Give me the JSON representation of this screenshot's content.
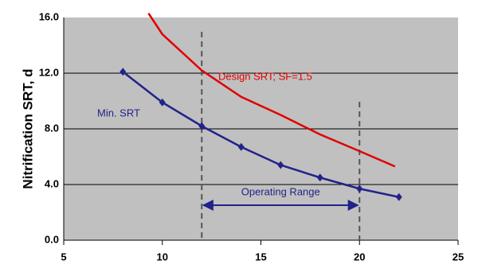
{
  "chart_data": {
    "type": "line",
    "y_label": "Nitrification SRT, d",
    "xlim": [
      5,
      25
    ],
    "xticks": [
      5,
      10,
      15,
      20,
      25
    ],
    "ylim": [
      0,
      16
    ],
    "yticks": [
      {
        "value": 0,
        "label": "0.0"
      },
      {
        "value": 4,
        "label": "4.0"
      },
      {
        "value": 8,
        "label": "8.0"
      },
      {
        "value": 12,
        "label": "12.0"
      },
      {
        "value": 16,
        "label": "16.0"
      }
    ],
    "grid": true,
    "series": [
      {
        "name": "Min. SRT",
        "color": "#22228b",
        "markers": true,
        "x": [
          8,
          10,
          12,
          14,
          16,
          18,
          20,
          22
        ],
        "values": [
          12.1,
          9.9,
          8.2,
          6.7,
          5.4,
          4.5,
          3.7,
          3.1
        ]
      },
      {
        "name": "Design SRT; SF=1.5",
        "color": "#e00000",
        "markers": false,
        "x": [
          9.3,
          10,
          12,
          14,
          16,
          18,
          20,
          21.8
        ],
        "values": [
          16.3,
          14.8,
          12.2,
          10.3,
          9.0,
          7.6,
          6.4,
          5.3
        ]
      }
    ],
    "vlines": [
      12,
      20
    ],
    "range_label": "Operating Range"
  }
}
